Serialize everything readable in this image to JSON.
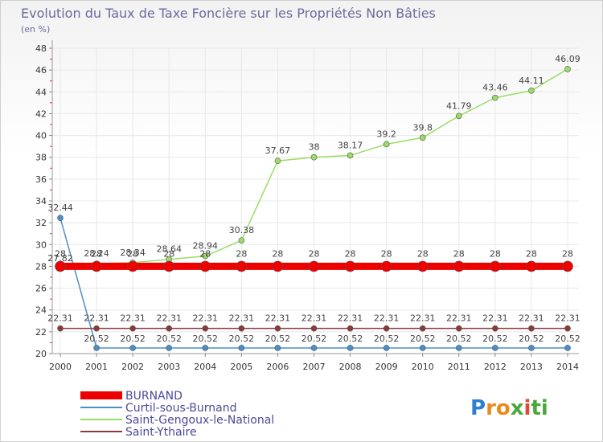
{
  "chart_data": {
    "type": "line",
    "title": "Evolution du Taux de Taxe Foncière sur les Propriétés Non Bâties",
    "subtitle": "(en %)",
    "xlabel": "",
    "ylabel": "(en %)",
    "ylim": [
      20,
      48
    ],
    "yticks": [
      "20",
      "22",
      "24",
      "26",
      "28",
      "30",
      "32",
      "34",
      "36",
      "38",
      "40",
      "42",
      "44",
      "46",
      "48"
    ],
    "categories": [
      "2000",
      "2001",
      "2002",
      "2003",
      "2004",
      "2005",
      "2006",
      "2007",
      "2008",
      "2009",
      "2010",
      "2011",
      "2012",
      "2013",
      "2014"
    ],
    "series": [
      {
        "name": "BURNAND",
        "color": "#ee0000",
        "values": [
          28,
          28,
          28,
          28,
          28,
          28,
          28,
          28,
          28,
          28,
          28,
          28,
          28,
          28,
          28
        ],
        "labels": [
          "28",
          "28",
          "28",
          "28",
          "28",
          "28",
          "28",
          "28",
          "28",
          "28",
          "28",
          "28",
          "28",
          "28",
          "28"
        ]
      },
      {
        "name": "Curtil-sous-Burnand",
        "color": "#4a8fc9",
        "values": [
          32.44,
          20.52,
          20.52,
          20.52,
          20.52,
          20.52,
          20.52,
          20.52,
          20.52,
          20.52,
          20.52,
          20.52,
          20.52,
          20.52,
          20.52
        ],
        "labels": [
          "32.44",
          "20.52",
          "20.52",
          "20.52",
          "20.52",
          "20.52",
          "20.52",
          "20.52",
          "20.52",
          "20.52",
          "20.52",
          "20.52",
          "20.52",
          "20.52",
          "20.52"
        ]
      },
      {
        "name": "Saint-Gengoux-le-National",
        "color": "#99dd66",
        "values": [
          27.82,
          28.24,
          28.34,
          28.64,
          28.94,
          30.38,
          37.67,
          38,
          38.17,
          39.2,
          39.8,
          41.79,
          43.46,
          44.11,
          46.09
        ],
        "labels": [
          "27.82",
          "28.24",
          "28.34",
          "28.64",
          "28.94",
          "30.38",
          "37.67",
          "38",
          "38.17",
          "39.2",
          "39.8",
          "41.79",
          "43.46",
          "44.11",
          "46.09"
        ]
      },
      {
        "name": "Saint-Ythaire",
        "color": "#8b3a3a",
        "values": [
          22.31,
          22.31,
          22.31,
          22.31,
          22.31,
          22.31,
          22.31,
          22.31,
          22.31,
          22.31,
          22.31,
          22.31,
          22.31,
          22.31,
          22.31
        ],
        "labels": [
          "22.31",
          "22.31",
          "22.31",
          "22.31",
          "22.31",
          "22.31",
          "22.31",
          "22.31",
          "22.31",
          "22.31",
          "22.31",
          "22.31",
          "22.31",
          "22.31",
          "22.31"
        ]
      }
    ],
    "legend_position": "bottom-left"
  },
  "logo": {
    "letters": [
      "P",
      "r",
      "o",
      "x",
      "i",
      "t",
      "i"
    ],
    "colors": [
      "#2d7fd4",
      "#e98b1c",
      "#e98b1c",
      "#4aa83a",
      "#e04a3a",
      "#4aa83a",
      "#4aa83a"
    ]
  }
}
